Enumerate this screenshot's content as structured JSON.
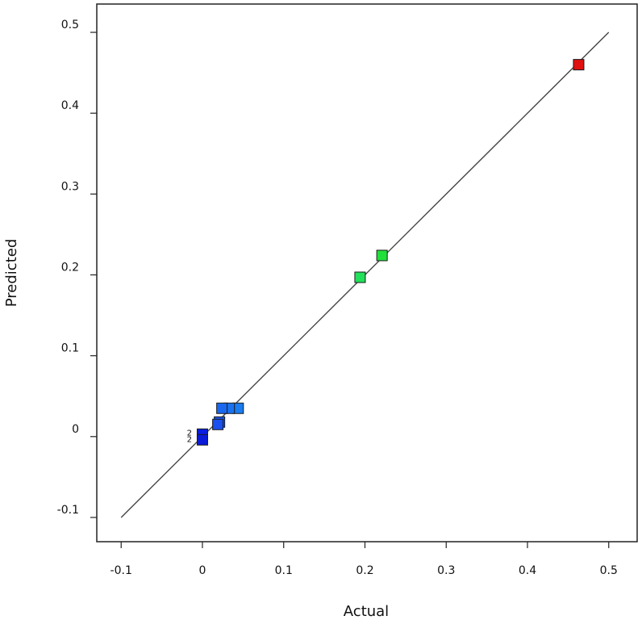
{
  "chart_data": {
    "type": "scatter",
    "xlabel": "Actual",
    "ylabel": "Predicted",
    "xlim": [
      -0.13,
      0.535
    ],
    "ylim": [
      -0.13,
      0.535
    ],
    "x_ticks": [
      -0.1,
      0,
      0.1,
      0.2,
      0.3,
      0.4,
      0.5
    ],
    "y_ticks": [
      -0.1,
      0,
      0.1,
      0.2,
      0.3,
      0.4,
      0.5
    ],
    "x_tick_labels": [
      "-0.1",
      "0",
      "0.1",
      "0.2",
      "0.3",
      "0.4",
      "0.5"
    ],
    "y_tick_labels": [
      "-0.1",
      "0",
      "0.1",
      "0.2",
      "0.3",
      "0.4",
      "0.5"
    ],
    "reference_line": {
      "from": [
        -0.1,
        -0.1
      ],
      "to": [
        0.5,
        0.5
      ],
      "color": "#444444"
    },
    "grid": false,
    "legend": "none",
    "points": [
      {
        "x": 0.463,
        "y": 0.46,
        "color": "#e01010"
      },
      {
        "x": 0.221,
        "y": 0.224,
        "color": "#22e03a"
      },
      {
        "x": 0.194,
        "y": 0.197,
        "color": "#22e05a"
      },
      {
        "x": 0.044,
        "y": 0.035,
        "color": "#1a7cf0"
      },
      {
        "x": 0.033,
        "y": 0.035,
        "color": "#1a72f0"
      },
      {
        "x": 0.024,
        "y": 0.035,
        "color": "#1a68f0"
      },
      {
        "x": 0.021,
        "y": 0.018,
        "color": "#1a55ee"
      },
      {
        "x": 0.019,
        "y": 0.015,
        "color": "#1a50ee"
      },
      {
        "x": 0.0,
        "y": 0.003,
        "color": "#0a1ee0"
      },
      {
        "x": 0.0,
        "y": -0.004,
        "color": "#0a1ad8"
      }
    ],
    "annotations": [
      {
        "text": "2",
        "x": -0.016,
        "y": 0.0055
      },
      {
        "text": "2",
        "x": -0.016,
        "y": -0.0025
      }
    ]
  }
}
